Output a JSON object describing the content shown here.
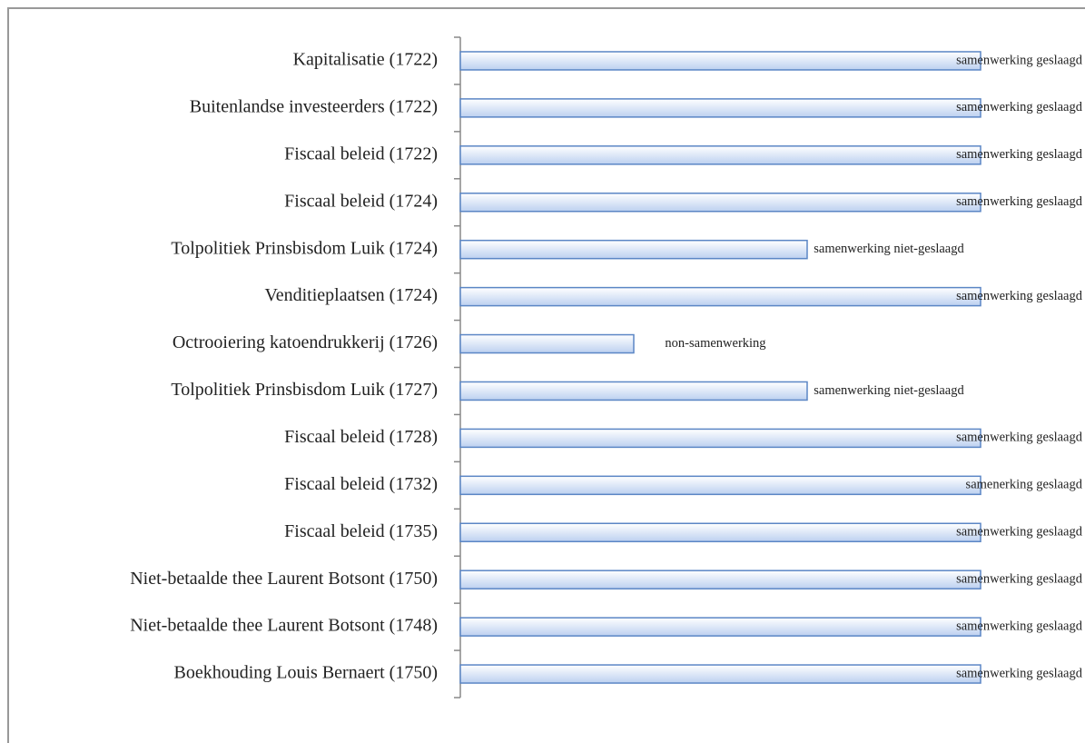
{
  "chart_data": {
    "type": "barh",
    "categories": [
      "Kapitalisatie (1722)",
      "Buitenlandse investeerders (1722)",
      "Fiscaal beleid (1722)",
      "Fiscaal beleid (1724)",
      "Tolpolitiek Prinsbisdom Luik (1724)",
      "Venditieplaatsen (1724)",
      "Octrooiering katoendrukkerij (1726)",
      "Tolpolitiek Prinsbisdom Luik (1727)",
      "Fiscaal beleid (1728)",
      "Fiscaal beleid (1732)",
      "Fiscaal beleid (1735)",
      "Niet-betaalde thee Laurent Botsont (1750)",
      "Niet-betaalde thee Laurent Botsont (1748)",
      "Boekhouding Louis Bernaert (1750)"
    ],
    "values": [
      3,
      3,
      3,
      3,
      2,
      3,
      1,
      2,
      3,
      3,
      3,
      3,
      3,
      3
    ],
    "value_labels": [
      "samenwerking geslaagd",
      "samenwerking geslaagd",
      "samenwerking geslaagd",
      "samenwerking geslaagd",
      "samenwerking niet-geslaagd",
      "samenwerking geslaagd",
      "non-samenwerking",
      "samenwerking niet-geslaagd",
      "samenwerking geslaagd",
      "samenerking geslaagd",
      "samenwerking geslaagd",
      "samenwerking geslaagd",
      "samenwerking geslaagd",
      "samenwerking geslaagd"
    ],
    "xlim": [
      0,
      3
    ],
    "color": "#bcd0f0",
    "edge_color": "#5b86c5"
  }
}
